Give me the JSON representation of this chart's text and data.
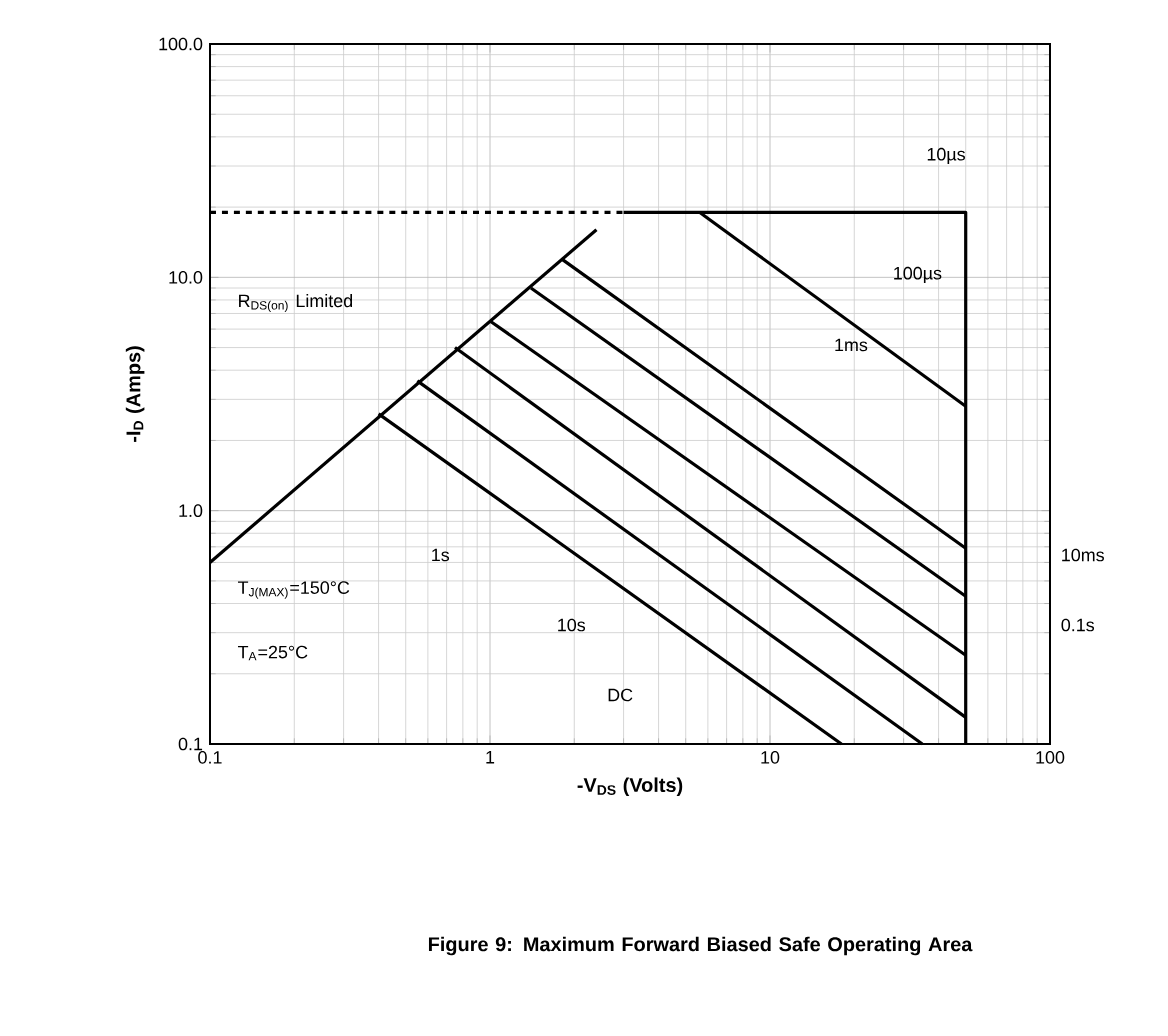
{
  "chart_data": {
    "type": "line",
    "title": "Figure 9: Maximum Forward Biased Safe Operating Area",
    "xlabel": "-V$_{DS}$ (Volts)",
    "ylabel": "-I$_{D}$ (Amps)",
    "log": "xy",
    "grid": true,
    "marker": "none",
    "xlim": [
      0.1,
      100
    ],
    "ylim": [
      0.1,
      100
    ],
    "xticks": [
      0.1,
      1,
      10,
      100
    ],
    "yticks": [
      {
        "value": 0.1,
        "label": "0.1"
      },
      {
        "value": 1,
        "label": "1.0"
      },
      {
        "value": 10,
        "label": "10.0"
      },
      {
        "value": 100,
        "label": "100.0"
      }
    ],
    "series": [
      {
        "color": "#000000",
        "line_style": "dashed",
        "x": [
          0.1,
          3
        ],
        "values": [
          19,
          19
        ]
      },
      {
        "color": "#000000",
        "line_style": "solid",
        "x": [
          3,
          50,
          50
        ],
        "values": [
          19,
          19,
          0.1
        ]
      },
      {
        "color": "#000000",
        "line_style": "solid",
        "x": [
          0.1,
          2.4
        ],
        "values": [
          0.6,
          16
        ]
      },
      {
        "color": "#000000",
        "line_style": "solid",
        "x": [
          5.6,
          50
        ],
        "values": [
          19,
          2.8
        ]
      },
      {
        "color": "#000000",
        "line_style": "solid",
        "x": [
          1.8,
          50
        ],
        "values": [
          12,
          0.69
        ]
      },
      {
        "color": "#000000",
        "line_style": "solid",
        "x": [
          1.4,
          50
        ],
        "values": [
          9,
          0.43
        ]
      },
      {
        "color": "#000000",
        "line_style": "solid",
        "x": [
          1.0,
          50
        ],
        "values": [
          6.5,
          0.24
        ]
      },
      {
        "color": "#000000",
        "line_style": "solid",
        "x": [
          0.75,
          50
        ],
        "values": [
          5,
          0.13
        ]
      },
      {
        "color": "#000000",
        "line_style": "solid",
        "x": [
          0.55,
          35
        ],
        "values": [
          3.6,
          0.1
        ]
      },
      {
        "color": "#000000",
        "line_style": "solid",
        "x": [
          0.4,
          18
        ],
        "values": [
          2.6,
          0.1
        ]
      }
    ],
    "annotations": [
      "10µs",
      "100µs",
      "1ms",
      "10ms",
      "0.1s",
      "1s",
      "10s",
      "DC",
      "R$_{DS(on)}$ Limited",
      "T$_{J(MAX)}$=150°C",
      "T$_{A}$=25°C"
    ]
  }
}
